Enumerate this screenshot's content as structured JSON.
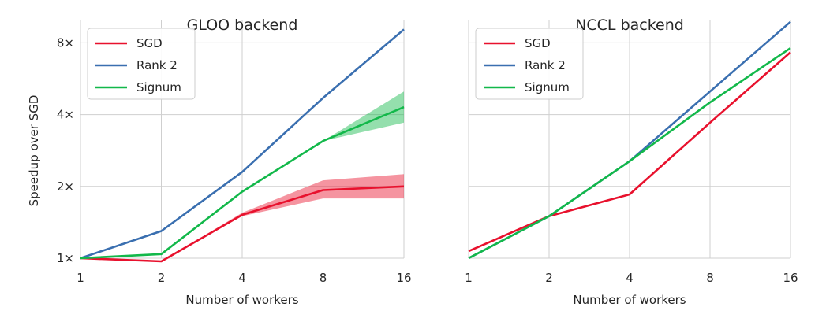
{
  "chart_data": [
    {
      "type": "line",
      "title": "GLOO backend",
      "xlabel": "Number of workers",
      "ylabel": "Speedup over SGD",
      "x": [
        1,
        2,
        4,
        8,
        16
      ],
      "x_ticks": [
        "1",
        "2",
        "4",
        "8",
        "16"
      ],
      "y_ticks": [
        1,
        2,
        4,
        8
      ],
      "y_tick_labels": [
        "1×",
        "2×",
        "4×",
        "8×"
      ],
      "xlim": [
        1,
        16
      ],
      "ylim": [
        1,
        10
      ],
      "grid": true,
      "legend_position": "top-left",
      "series": [
        {
          "name": "SGD",
          "color": "#e8112d",
          "values": [
            1.0,
            0.97,
            1.52,
            1.93,
            2.0
          ],
          "band_low": [
            1.0,
            0.97,
            1.5,
            1.78,
            1.78
          ],
          "band_high": [
            1.0,
            0.97,
            1.55,
            2.12,
            2.25
          ]
        },
        {
          "name": "Rank 2",
          "color": "#3a6fb0",
          "values": [
            1.0,
            1.3,
            2.3,
            4.7,
            9.1
          ]
        },
        {
          "name": "Signum",
          "color": "#12b84a",
          "values": [
            1.0,
            1.04,
            1.9,
            3.1,
            4.3
          ],
          "band_low": [
            1.0,
            1.04,
            1.9,
            3.1,
            3.7
          ],
          "band_high": [
            1.0,
            1.04,
            1.9,
            3.1,
            5.0
          ]
        }
      ]
    },
    {
      "type": "line",
      "title": "NCCL backend",
      "xlabel": "Number of workers",
      "ylabel": "",
      "x": [
        1,
        2,
        4,
        8,
        16
      ],
      "x_ticks": [
        "1",
        "2",
        "4",
        "8",
        "16"
      ],
      "y_ticks": [
        1,
        2,
        4,
        8
      ],
      "y_tick_labels": [
        "",
        "",
        "",
        ""
      ],
      "xlim": [
        1,
        16
      ],
      "ylim": [
        1,
        10
      ],
      "grid": true,
      "legend_position": "top-left",
      "series": [
        {
          "name": "SGD",
          "color": "#e8112d",
          "values": [
            1.07,
            1.5,
            1.85,
            3.7,
            7.3
          ]
        },
        {
          "name": "Rank 2",
          "color": "#3a6fb0",
          "values": [
            1.0,
            1.5,
            2.55,
            5.0,
            9.8
          ]
        },
        {
          "name": "Signum",
          "color": "#12b84a",
          "values": [
            1.0,
            1.5,
            2.55,
            4.5,
            7.6
          ]
        }
      ]
    }
  ]
}
